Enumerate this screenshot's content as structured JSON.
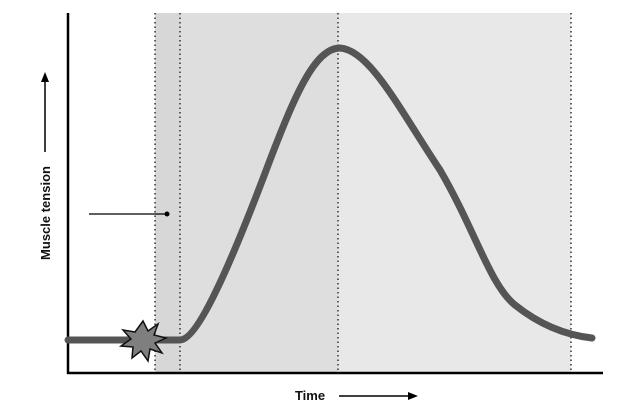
{
  "diagram": {
    "title": "",
    "x_axis_label": "Time",
    "y_axis_label": "Muscle tension",
    "colors": {
      "curve": "#555555",
      "latent_band": "#d7d7d7",
      "contraction_band": "#dedede",
      "relaxation_band": "#e8e8e8",
      "axis": "#000000",
      "stimulus_burst": "#7f7f7f"
    },
    "periods": [
      "latent",
      "contraction",
      "relaxation"
    ],
    "stimulus_icon": "starburst-icon"
  },
  "chart_data": {
    "type": "line",
    "title": "",
    "xlabel": "Time",
    "ylabel": "Muscle tension",
    "x_ticks": [],
    "y_ticks": [],
    "grid": false,
    "series": [
      {
        "x": [
          0,
          0.1,
          0.2,
          0.3,
          0.4,
          0.5,
          0.6,
          0.7,
          0.8,
          0.9,
          1.0
        ],
        "values": [
          0,
          0,
          0,
          0.2,
          0.72,
          1.0,
          0.85,
          0.4,
          0.12,
          0.04,
          0.0
        ]
      }
    ]
  }
}
